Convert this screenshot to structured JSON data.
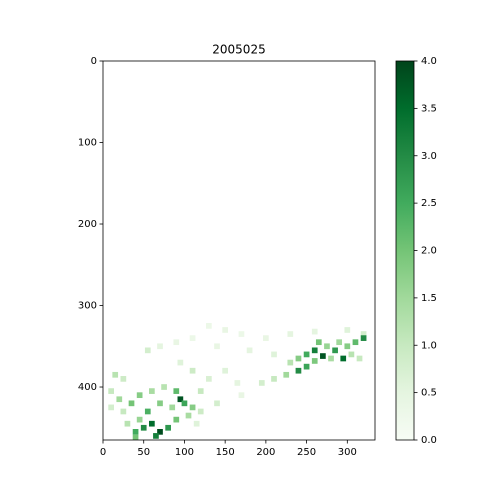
{
  "chart_data": {
    "type": "heatmap",
    "title": "2005025",
    "x": [
      130,
      150,
      110,
      170,
      200,
      230,
      260,
      300,
      320,
      90,
      70,
      55,
      140,
      180,
      210,
      230,
      240,
      250,
      260,
      265,
      275,
      285,
      290,
      300,
      310,
      305,
      315,
      295,
      280,
      270,
      250,
      240,
      225,
      210,
      195,
      320,
      260,
      150,
      165,
      130,
      110,
      95,
      120,
      170,
      140,
      15,
      25,
      10,
      20,
      35,
      45,
      60,
      75,
      90,
      95,
      100,
      85,
      70,
      55,
      45,
      30,
      40,
      50,
      60,
      70,
      80,
      65,
      90,
      105,
      110,
      120,
      40,
      25,
      10,
      115
    ],
    "y": [
      325,
      330,
      340,
      335,
      340,
      335,
      332,
      330,
      335,
      345,
      350,
      355,
      350,
      355,
      360,
      370,
      365,
      360,
      355,
      345,
      350,
      355,
      345,
      350,
      345,
      360,
      365,
      365,
      365,
      362,
      375,
      380,
      385,
      390,
      395,
      340,
      368,
      380,
      395,
      390,
      380,
      370,
      405,
      410,
      420,
      385,
      390,
      405,
      415,
      420,
      410,
      405,
      400,
      405,
      415,
      420,
      425,
      420,
      430,
      440,
      445,
      455,
      450,
      445,
      455,
      450,
      460,
      440,
      435,
      425,
      430,
      462,
      430,
      425,
      445
    ],
    "values": [
      0.3,
      0.4,
      0.3,
      0.3,
      0.4,
      0.5,
      0.5,
      0.6,
      0.8,
      0.4,
      0.5,
      0.8,
      0.4,
      0.5,
      0.6,
      1.2,
      1.8,
      2.5,
      3.2,
      2.0,
      1.6,
      2.8,
      1.5,
      1.8,
      2.2,
      1.2,
      1.0,
      3.5,
      1.4,
      3.8,
      2.6,
      3.0,
      1.5,
      1.0,
      0.8,
      3.0,
      1.9,
      0.6,
      0.5,
      0.7,
      0.9,
      0.6,
      1.0,
      0.4,
      0.8,
      1.2,
      0.9,
      1.0,
      1.5,
      2.0,
      1.8,
      1.4,
      1.2,
      2.2,
      3.8,
      2.6,
      1.5,
      1.8,
      2.4,
      1.6,
      1.2,
      2.5,
      3.0,
      3.5,
      3.9,
      2.8,
      3.2,
      2.0,
      1.4,
      1.8,
      0.9,
      2.0,
      1.0,
      0.8,
      0.6
    ],
    "xlim": [
      0,
      334
    ],
    "ylim": [
      465,
      0
    ],
    "xticks": [
      0,
      50,
      100,
      150,
      200,
      250,
      300
    ],
    "yticks": [
      0,
      100,
      200,
      300,
      400
    ],
    "clim": [
      0,
      4
    ],
    "cticks": [
      {
        "value": 0,
        "label": "0.0"
      },
      0.5,
      {
        "value": 1,
        "label": "1.0"
      },
      1.5,
      {
        "value": 2,
        "label": "2.0"
      },
      2.5,
      {
        "value": 3,
        "label": "3.0"
      },
      3.5,
      {
        "value": 4,
        "label": "4.0"
      }
    ],
    "colormap": [
      "#f7fcf5",
      "#e5f5e0",
      "#c7e9c0",
      "#a1d99b",
      "#74c476",
      "#41ab5d",
      "#238b45",
      "#006d2c",
      "#00441b"
    ]
  }
}
